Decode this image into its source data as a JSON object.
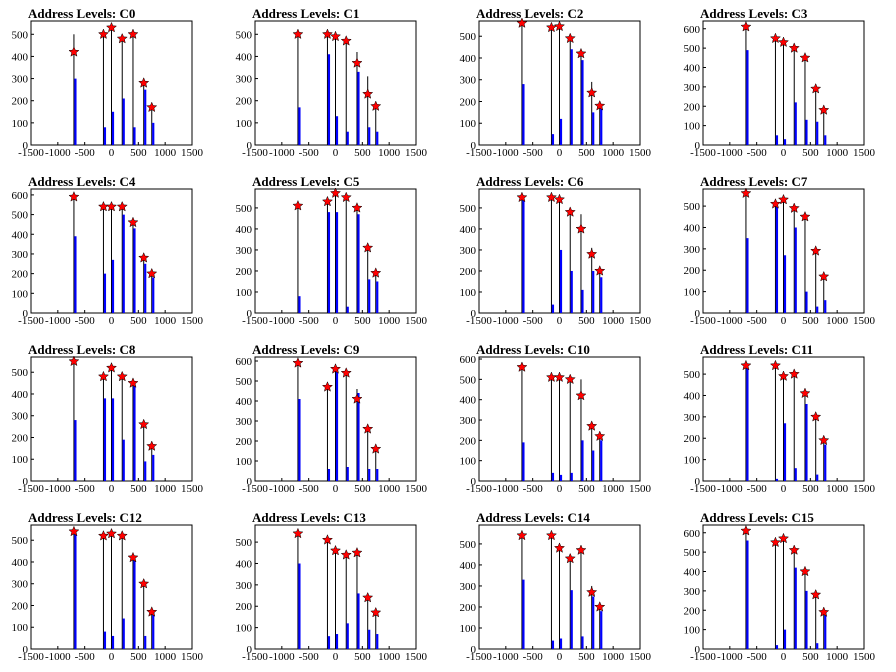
{
  "chart_data": [
    {
      "type": "bar",
      "title": "Address Levels: C0",
      "xlim": [
        -1500,
        1500
      ],
      "ylim": [
        0,
        560
      ],
      "xticks": [
        -1500,
        -1000,
        -500,
        0,
        500,
        1000,
        1500
      ],
      "yticks": [
        0,
        100,
        200,
        300,
        400,
        500
      ],
      "peaks_x": [
        -700,
        -150,
        0,
        200,
        400,
        600,
        750
      ],
      "star_values": [
        420,
        500,
        530,
        480,
        500,
        280,
        170
      ],
      "black_bars": [
        500,
        500,
        520,
        480,
        500,
        300,
        160
      ],
      "blue_bars": [
        300,
        80,
        150,
        210,
        80,
        250,
        100
      ]
    },
    {
      "type": "bar",
      "title": "Address Levels: C1",
      "xlim": [
        -1500,
        1500
      ],
      "ylim": [
        0,
        560
      ],
      "xticks": [
        -1500,
        -1000,
        -500,
        0,
        500,
        1000,
        1500
      ],
      "yticks": [
        0,
        100,
        200,
        300,
        400,
        500
      ],
      "peaks_x": [
        -700,
        -150,
        0,
        200,
        400,
        600,
        750
      ],
      "star_values": [
        500,
        500,
        490,
        470,
        370,
        230,
        175
      ],
      "black_bars": [
        500,
        500,
        490,
        470,
        420,
        310,
        170
      ],
      "blue_bars": [
        170,
        410,
        130,
        60,
        330,
        80,
        60
      ]
    },
    {
      "type": "bar",
      "title": "Address Levels: C2",
      "xlim": [
        -1500,
        1500
      ],
      "ylim": [
        0,
        570
      ],
      "xticks": [
        -1500,
        -1000,
        -500,
        0,
        500,
        1000,
        1500
      ],
      "yticks": [
        0,
        100,
        200,
        300,
        400,
        500
      ],
      "peaks_x": [
        -700,
        -150,
        0,
        200,
        400,
        600,
        750
      ],
      "star_values": [
        560,
        540,
        545,
        490,
        420,
        240,
        180
      ],
      "black_bars": [
        560,
        540,
        545,
        490,
        430,
        290,
        190
      ],
      "blue_bars": [
        280,
        50,
        120,
        440,
        390,
        150,
        170
      ]
    },
    {
      "type": "bar",
      "title": "Address Levels: C3",
      "xlim": [
        -1500,
        1500
      ],
      "ylim": [
        0,
        640
      ],
      "xticks": [
        -1500,
        -1000,
        -500,
        0,
        500,
        1000,
        1500
      ],
      "yticks": [
        0,
        100,
        200,
        300,
        400,
        500,
        600
      ],
      "peaks_x": [
        -700,
        -150,
        0,
        200,
        400,
        600,
        750
      ],
      "star_values": [
        610,
        550,
        530,
        500,
        450,
        290,
        180
      ],
      "black_bars": [
        610,
        550,
        530,
        500,
        450,
        290,
        180
      ],
      "blue_bars": [
        490,
        50,
        30,
        220,
        130,
        120,
        50
      ]
    },
    {
      "type": "bar",
      "title": "Address Levels: C4",
      "xlim": [
        -1500,
        1500
      ],
      "ylim": [
        0,
        630
      ],
      "xticks": [
        -1500,
        -1000,
        -500,
        0,
        500,
        1000,
        1500
      ],
      "yticks": [
        0,
        100,
        200,
        300,
        400,
        500,
        600
      ],
      "peaks_x": [
        -700,
        -150,
        0,
        200,
        400,
        600,
        750
      ],
      "star_values": [
        590,
        540,
        540,
        540,
        460,
        280,
        200
      ],
      "black_bars": [
        590,
        540,
        540,
        540,
        460,
        300,
        200
      ],
      "blue_bars": [
        390,
        200,
        270,
        500,
        430,
        250,
        180
      ]
    },
    {
      "type": "bar",
      "title": "Address Levels: C5",
      "xlim": [
        -1500,
        1500
      ],
      "ylim": [
        0,
        590
      ],
      "xticks": [
        -1500,
        -1000,
        -500,
        0,
        500,
        1000,
        1500
      ],
      "yticks": [
        0,
        100,
        200,
        300,
        400,
        500
      ],
      "peaks_x": [
        -700,
        -150,
        0,
        200,
        400,
        600,
        750
      ],
      "star_values": [
        510,
        530,
        570,
        550,
        500,
        310,
        190
      ],
      "black_bars": [
        520,
        530,
        570,
        550,
        500,
        310,
        190
      ],
      "blue_bars": [
        80,
        480,
        480,
        30,
        470,
        160,
        150
      ]
    },
    {
      "type": "bar",
      "title": "Address Levels: C6",
      "xlim": [
        -1500,
        1500
      ],
      "ylim": [
        0,
        590
      ],
      "xticks": [
        -1500,
        -1000,
        -500,
        0,
        500,
        1000,
        1500
      ],
      "yticks": [
        0,
        100,
        200,
        300,
        400,
        500
      ],
      "peaks_x": [
        -700,
        -150,
        0,
        200,
        400,
        600,
        750
      ],
      "star_values": [
        550,
        550,
        540,
        480,
        400,
        280,
        200
      ],
      "black_bars": [
        550,
        550,
        540,
        480,
        470,
        310,
        200
      ],
      "blue_bars": [
        540,
        40,
        300,
        200,
        110,
        200,
        170
      ]
    },
    {
      "type": "bar",
      "title": "Address Levels: C7",
      "xlim": [
        -1500,
        1500
      ],
      "ylim": [
        0,
        580
      ],
      "xticks": [
        -1500,
        -1000,
        -500,
        0,
        500,
        1000,
        1500
      ],
      "yticks": [
        0,
        100,
        200,
        300,
        400,
        500
      ],
      "peaks_x": [
        -700,
        -150,
        0,
        200,
        400,
        600,
        750
      ],
      "star_values": [
        560,
        510,
        530,
        490,
        450,
        290,
        170
      ],
      "black_bars": [
        560,
        510,
        530,
        490,
        450,
        290,
        170
      ],
      "blue_bars": [
        350,
        500,
        270,
        400,
        100,
        30,
        60
      ]
    },
    {
      "type": "bar",
      "title": "Address Levels: C8",
      "xlim": [
        -1500,
        1500
      ],
      "ylim": [
        0,
        570
      ],
      "xticks": [
        -1500,
        -1000,
        -500,
        0,
        500,
        1000,
        1500
      ],
      "yticks": [
        0,
        100,
        200,
        300,
        400,
        500
      ],
      "peaks_x": [
        -700,
        -150,
        0,
        200,
        400,
        600,
        750
      ],
      "star_values": [
        550,
        480,
        520,
        480,
        450,
        260,
        160
      ],
      "black_bars": [
        550,
        480,
        520,
        480,
        450,
        260,
        160
      ],
      "blue_bars": [
        280,
        380,
        380,
        190,
        440,
        90,
        120
      ]
    },
    {
      "type": "bar",
      "title": "Address Levels: C9",
      "xlim": [
        -1500,
        1500
      ],
      "ylim": [
        0,
        620
      ],
      "xticks": [
        -1500,
        -1000,
        -500,
        0,
        500,
        1000,
        1500
      ],
      "yticks": [
        0,
        100,
        200,
        300,
        400,
        500,
        600
      ],
      "peaks_x": [
        -700,
        -150,
        0,
        200,
        400,
        600,
        750
      ],
      "star_values": [
        590,
        470,
        560,
        540,
        410,
        260,
        160
      ],
      "black_bars": [
        590,
        470,
        560,
        540,
        460,
        280,
        170
      ],
      "blue_bars": [
        410,
        60,
        560,
        70,
        440,
        60,
        60
      ]
    },
    {
      "type": "bar",
      "title": "Address Levels: C10",
      "xlim": [
        -1500,
        1500
      ],
      "ylim": [
        0,
        610
      ],
      "xticks": [
        -1500,
        -1000,
        -500,
        0,
        500,
        1000,
        1500
      ],
      "yticks": [
        0,
        100,
        200,
        300,
        400,
        500,
        600
      ],
      "peaks_x": [
        -700,
        -150,
        0,
        200,
        400,
        600,
        750
      ],
      "star_values": [
        560,
        510,
        510,
        500,
        420,
        270,
        220
      ],
      "black_bars": [
        560,
        510,
        510,
        500,
        500,
        270,
        220
      ],
      "blue_bars": [
        190,
        40,
        30,
        40,
        200,
        150,
        200
      ]
    },
    {
      "type": "bar",
      "title": "Address Levels: C11",
      "xlim": [
        -1500,
        1500
      ],
      "ylim": [
        0,
        580
      ],
      "xticks": [
        -1500,
        -1000,
        -500,
        0,
        500,
        1000,
        1500
      ],
      "yticks": [
        0,
        100,
        200,
        300,
        400,
        500
      ],
      "peaks_x": [
        -700,
        -150,
        0,
        200,
        400,
        600,
        750
      ],
      "star_values": [
        540,
        540,
        490,
        500,
        410,
        300,
        190
      ],
      "black_bars": [
        540,
        540,
        490,
        500,
        410,
        300,
        190
      ],
      "blue_bars": [
        530,
        10,
        270,
        60,
        360,
        30,
        170
      ]
    },
    {
      "type": "bar",
      "title": "Address Levels: C12",
      "xlim": [
        -1500,
        1500
      ],
      "ylim": [
        0,
        570
      ],
      "xticks": [
        -1500,
        -1000,
        -500,
        0,
        500,
        1000,
        1500
      ],
      "yticks": [
        0,
        100,
        200,
        300,
        400,
        500
      ],
      "peaks_x": [
        -700,
        -150,
        0,
        200,
        400,
        600,
        750
      ],
      "star_values": [
        540,
        520,
        530,
        520,
        420,
        300,
        170
      ],
      "black_bars": [
        540,
        520,
        530,
        520,
        420,
        300,
        170
      ],
      "blue_bars": [
        530,
        80,
        60,
        140,
        410,
        60,
        170
      ]
    },
    {
      "type": "bar",
      "title": "Address Levels: C13",
      "xlim": [
        -1500,
        1500
      ],
      "ylim": [
        0,
        580
      ],
      "xticks": [
        -1500,
        -1000,
        -500,
        0,
        500,
        1000,
        1500
      ],
      "yticks": [
        0,
        100,
        200,
        300,
        400,
        500
      ],
      "peaks_x": [
        -700,
        -150,
        0,
        200,
        400,
        600,
        750
      ],
      "star_values": [
        540,
        510,
        460,
        440,
        450,
        240,
        170
      ],
      "black_bars": [
        540,
        510,
        460,
        440,
        450,
        240,
        170
      ],
      "blue_bars": [
        400,
        60,
        70,
        120,
        260,
        90,
        70
      ]
    },
    {
      "type": "bar",
      "title": "Address Levels: C14",
      "xlim": [
        -1500,
        1500
      ],
      "ylim": [
        0,
        590
      ],
      "xticks": [
        -1500,
        -1000,
        -500,
        0,
        500,
        1000,
        1500
      ],
      "yticks": [
        0,
        100,
        200,
        300,
        400,
        500
      ],
      "peaks_x": [
        -700,
        -150,
        0,
        200,
        400,
        600,
        750
      ],
      "star_values": [
        540,
        540,
        480,
        430,
        470,
        270,
        200
      ],
      "black_bars": [
        540,
        540,
        480,
        430,
        470,
        300,
        200
      ],
      "blue_bars": [
        330,
        40,
        50,
        280,
        60,
        250,
        180
      ]
    },
    {
      "type": "bar",
      "title": "Address Levels: C15",
      "xlim": [
        -1500,
        1500
      ],
      "ylim": [
        0,
        640
      ],
      "xticks": [
        -1500,
        -1000,
        -500,
        0,
        500,
        1000,
        1500
      ],
      "yticks": [
        0,
        100,
        200,
        300,
        400,
        500,
        600
      ],
      "peaks_x": [
        -700,
        -150,
        0,
        200,
        400,
        600,
        750
      ],
      "star_values": [
        610,
        550,
        570,
        510,
        400,
        280,
        190
      ],
      "black_bars": [
        610,
        550,
        570,
        510,
        400,
        280,
        190
      ],
      "blue_bars": [
        560,
        20,
        100,
        420,
        300,
        30,
        190
      ]
    }
  ],
  "colors": {
    "axis": "#000000",
    "black_bar": "#000000",
    "blue_bar": "#0000ff",
    "star": "#ff0000"
  }
}
